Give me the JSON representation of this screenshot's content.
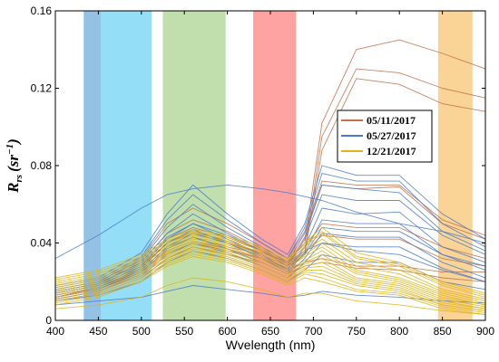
{
  "chart_data": {
    "type": "line",
    "xlabel": "Wvelength (nm)",
    "ylabel_main": "R",
    "ylabel_sub": "rs",
    "ylabel_unit": "(sr",
    "ylabel_exp": "−1",
    "ylabel_close": ")",
    "xlim": [
      400,
      900
    ],
    "ylim": [
      0,
      0.16
    ],
    "xticks": [
      400,
      450,
      500,
      550,
      600,
      650,
      700,
      750,
      800,
      850,
      900
    ],
    "yticks": [
      0,
      0.04,
      0.08,
      0.12,
      0.16
    ],
    "ytick_labels": [
      "0",
      "0.04",
      "0.08",
      "0.12",
      "0.16"
    ],
    "legend_position": "right",
    "bands": [
      {
        "x0": 433,
        "x1": 453,
        "color": "#3a8fd0"
      },
      {
        "x0": 453,
        "x1": 512,
        "color": "#3ec3f0"
      },
      {
        "x0": 525,
        "x1": 598,
        "color": "#8cc46a"
      },
      {
        "x0": 630,
        "x1": 680,
        "color": "#ff5555"
      },
      {
        "x0": 845,
        "x1": 885,
        "color": "#f5b040"
      }
    ],
    "series": [
      {
        "name": "05/11/2017",
        "color": "#c0704a"
      },
      {
        "name": "05/27/2017",
        "color": "#4a7bc8"
      },
      {
        "name": "12/21/2017",
        "color": "#e0b418"
      }
    ],
    "wavelengths": [
      400,
      450,
      500,
      530,
      560,
      600,
      640,
      670,
      690,
      710,
      750,
      800,
      850,
      900
    ],
    "curves": [
      {
        "s": 0,
        "y": [
          0.014,
          0.018,
          0.028,
          0.04,
          0.045,
          0.04,
          0.035,
          0.03,
          0.04,
          0.102,
          0.14,
          0.145,
          0.138,
          0.13
        ]
      },
      {
        "s": 0,
        "y": [
          0.012,
          0.017,
          0.026,
          0.038,
          0.043,
          0.038,
          0.034,
          0.028,
          0.036,
          0.095,
          0.13,
          0.128,
          0.12,
          0.115
        ]
      },
      {
        "s": 0,
        "y": [
          0.011,
          0.015,
          0.024,
          0.035,
          0.04,
          0.036,
          0.032,
          0.027,
          0.034,
          0.088,
          0.125,
          0.122,
          0.112,
          0.108
        ]
      },
      {
        "s": 0,
        "y": [
          0.015,
          0.019,
          0.03,
          0.045,
          0.052,
          0.046,
          0.037,
          0.029,
          0.043,
          0.07,
          0.068,
          0.069,
          0.05,
          0.042
        ]
      },
      {
        "s": 0,
        "y": [
          0.016,
          0.02,
          0.032,
          0.05,
          0.058,
          0.05,
          0.04,
          0.032,
          0.046,
          0.072,
          0.07,
          0.07,
          0.052,
          0.044
        ]
      },
      {
        "s": 0,
        "y": [
          0.012,
          0.016,
          0.025,
          0.036,
          0.041,
          0.037,
          0.032,
          0.026,
          0.03,
          0.032,
          0.028,
          0.028,
          0.025,
          0.025
        ]
      },
      {
        "s": 0,
        "y": [
          0.01,
          0.014,
          0.022,
          0.032,
          0.038,
          0.034,
          0.03,
          0.024,
          0.028,
          0.03,
          0.027,
          0.026,
          0.022,
          0.02
        ]
      },
      {
        "s": 0,
        "y": [
          0.014,
          0.018,
          0.028,
          0.042,
          0.048,
          0.043,
          0.036,
          0.03,
          0.038,
          0.05,
          0.048,
          0.048,
          0.038,
          0.032
        ]
      },
      {
        "s": 0,
        "y": [
          0.013,
          0.017,
          0.027,
          0.04,
          0.046,
          0.041,
          0.034,
          0.028,
          0.035,
          0.044,
          0.042,
          0.042,
          0.032,
          0.028
        ]
      },
      {
        "s": 1,
        "y": [
          0.032,
          0.044,
          0.058,
          0.065,
          0.068,
          0.07,
          0.068,
          0.066,
          0.064,
          0.062,
          0.056,
          0.05,
          0.046,
          0.04
        ]
      },
      {
        "s": 1,
        "y": [
          0.018,
          0.022,
          0.035,
          0.055,
          0.07,
          0.055,
          0.042,
          0.034,
          0.05,
          0.08,
          0.075,
          0.075,
          0.055,
          0.042
        ]
      },
      {
        "s": 1,
        "y": [
          0.017,
          0.021,
          0.033,
          0.052,
          0.065,
          0.052,
          0.04,
          0.032,
          0.048,
          0.076,
          0.072,
          0.072,
          0.05,
          0.038
        ]
      },
      {
        "s": 1,
        "y": [
          0.016,
          0.02,
          0.031,
          0.048,
          0.06,
          0.048,
          0.038,
          0.03,
          0.045,
          0.07,
          0.068,
          0.066,
          0.046,
          0.036
        ]
      },
      {
        "s": 1,
        "y": [
          0.015,
          0.019,
          0.03,
          0.045,
          0.055,
          0.045,
          0.036,
          0.028,
          0.042,
          0.065,
          0.062,
          0.062,
          0.044,
          0.034
        ]
      },
      {
        "s": 1,
        "y": [
          0.014,
          0.018,
          0.028,
          0.042,
          0.05,
          0.042,
          0.034,
          0.026,
          0.038,
          0.058,
          0.055,
          0.056,
          0.038,
          0.03
        ]
      },
      {
        "s": 1,
        "y": [
          0.013,
          0.017,
          0.027,
          0.04,
          0.047,
          0.04,
          0.032,
          0.025,
          0.035,
          0.052,
          0.05,
          0.05,
          0.034,
          0.026
        ]
      },
      {
        "s": 1,
        "y": [
          0.012,
          0.016,
          0.025,
          0.037,
          0.043,
          0.037,
          0.03,
          0.024,
          0.032,
          0.045,
          0.043,
          0.043,
          0.03,
          0.022
        ]
      },
      {
        "s": 1,
        "y": [
          0.011,
          0.015,
          0.023,
          0.034,
          0.04,
          0.035,
          0.028,
          0.022,
          0.03,
          0.04,
          0.038,
          0.038,
          0.027,
          0.02
        ]
      },
      {
        "s": 1,
        "y": [
          0.015,
          0.019,
          0.029,
          0.043,
          0.05,
          0.044,
          0.036,
          0.03,
          0.036,
          0.04,
          0.036,
          0.034,
          0.026,
          0.02
        ]
      },
      {
        "s": 1,
        "y": [
          0.01,
          0.013,
          0.02,
          0.03,
          0.036,
          0.032,
          0.026,
          0.02,
          0.026,
          0.034,
          0.03,
          0.03,
          0.02,
          0.016
        ]
      },
      {
        "s": 1,
        "y": [
          0.008,
          0.01,
          0.012,
          0.015,
          0.018,
          0.016,
          0.014,
          0.012,
          0.013,
          0.015,
          0.013,
          0.012,
          0.01,
          0.009
        ]
      },
      {
        "s": 1,
        "y": [
          0.012,
          0.016,
          0.026,
          0.038,
          0.045,
          0.04,
          0.033,
          0.027,
          0.034,
          0.048,
          0.046,
          0.046,
          0.034,
          0.028
        ]
      },
      {
        "s": 2,
        "y": [
          0.02,
          0.024,
          0.032,
          0.04,
          0.045,
          0.042,
          0.036,
          0.03,
          0.038,
          0.045,
          0.032,
          0.028,
          0.018,
          0.012
        ]
      },
      {
        "s": 2,
        "y": [
          0.019,
          0.023,
          0.031,
          0.039,
          0.044,
          0.041,
          0.035,
          0.029,
          0.036,
          0.042,
          0.03,
          0.026,
          0.016,
          0.011
        ]
      },
      {
        "s": 2,
        "y": [
          0.018,
          0.022,
          0.03,
          0.038,
          0.043,
          0.04,
          0.034,
          0.028,
          0.034,
          0.04,
          0.028,
          0.024,
          0.015,
          0.01
        ]
      },
      {
        "s": 2,
        "y": [
          0.017,
          0.021,
          0.029,
          0.037,
          0.042,
          0.039,
          0.033,
          0.027,
          0.033,
          0.038,
          0.026,
          0.022,
          0.014,
          0.009
        ]
      },
      {
        "s": 2,
        "y": [
          0.016,
          0.02,
          0.028,
          0.036,
          0.041,
          0.038,
          0.032,
          0.026,
          0.031,
          0.036,
          0.025,
          0.021,
          0.013,
          0.008
        ]
      },
      {
        "s": 2,
        "y": [
          0.015,
          0.019,
          0.027,
          0.035,
          0.04,
          0.037,
          0.031,
          0.025,
          0.03,
          0.034,
          0.024,
          0.02,
          0.012,
          0.008
        ]
      },
      {
        "s": 2,
        "y": [
          0.014,
          0.018,
          0.026,
          0.034,
          0.039,
          0.036,
          0.03,
          0.024,
          0.029,
          0.032,
          0.022,
          0.019,
          0.011,
          0.007
        ]
      },
      {
        "s": 2,
        "y": [
          0.013,
          0.017,
          0.025,
          0.033,
          0.038,
          0.035,
          0.029,
          0.023,
          0.028,
          0.03,
          0.021,
          0.018,
          0.01,
          0.006
        ]
      },
      {
        "s": 2,
        "y": [
          0.012,
          0.016,
          0.024,
          0.032,
          0.037,
          0.034,
          0.028,
          0.022,
          0.027,
          0.028,
          0.02,
          0.017,
          0.009,
          0.006
        ]
      },
      {
        "s": 2,
        "y": [
          0.011,
          0.015,
          0.023,
          0.031,
          0.036,
          0.033,
          0.027,
          0.021,
          0.026,
          0.026,
          0.019,
          0.016,
          0.008,
          0.005
        ]
      },
      {
        "s": 2,
        "y": [
          0.01,
          0.014,
          0.022,
          0.03,
          0.035,
          0.032,
          0.026,
          0.02,
          0.025,
          0.024,
          0.018,
          0.015,
          0.008,
          0.005
        ]
      },
      {
        "s": 2,
        "y": [
          0.009,
          0.013,
          0.021,
          0.029,
          0.034,
          0.031,
          0.025,
          0.019,
          0.024,
          0.022,
          0.016,
          0.014,
          0.007,
          0.004
        ]
      },
      {
        "s": 2,
        "y": [
          0.022,
          0.026,
          0.034,
          0.042,
          0.047,
          0.044,
          0.038,
          0.032,
          0.04,
          0.048,
          0.035,
          0.03,
          0.02,
          0.014
        ]
      },
      {
        "s": 2,
        "y": [
          0.008,
          0.012,
          0.02,
          0.028,
          0.033,
          0.03,
          0.024,
          0.018,
          0.022,
          0.02,
          0.015,
          0.013,
          0.006,
          0.003
        ]
      },
      {
        "s": 2,
        "y": [
          0.021,
          0.025,
          0.033,
          0.041,
          0.046,
          0.043,
          0.037,
          0.031,
          0.039,
          0.046,
          0.033,
          0.029,
          0.019,
          0.013
        ]
      },
      {
        "s": 2,
        "y": [
          0.006,
          0.008,
          0.012,
          0.018,
          0.022,
          0.02,
          0.016,
          0.012,
          0.014,
          0.014,
          0.01,
          0.008,
          0.005,
          0.003
        ]
      }
    ]
  }
}
